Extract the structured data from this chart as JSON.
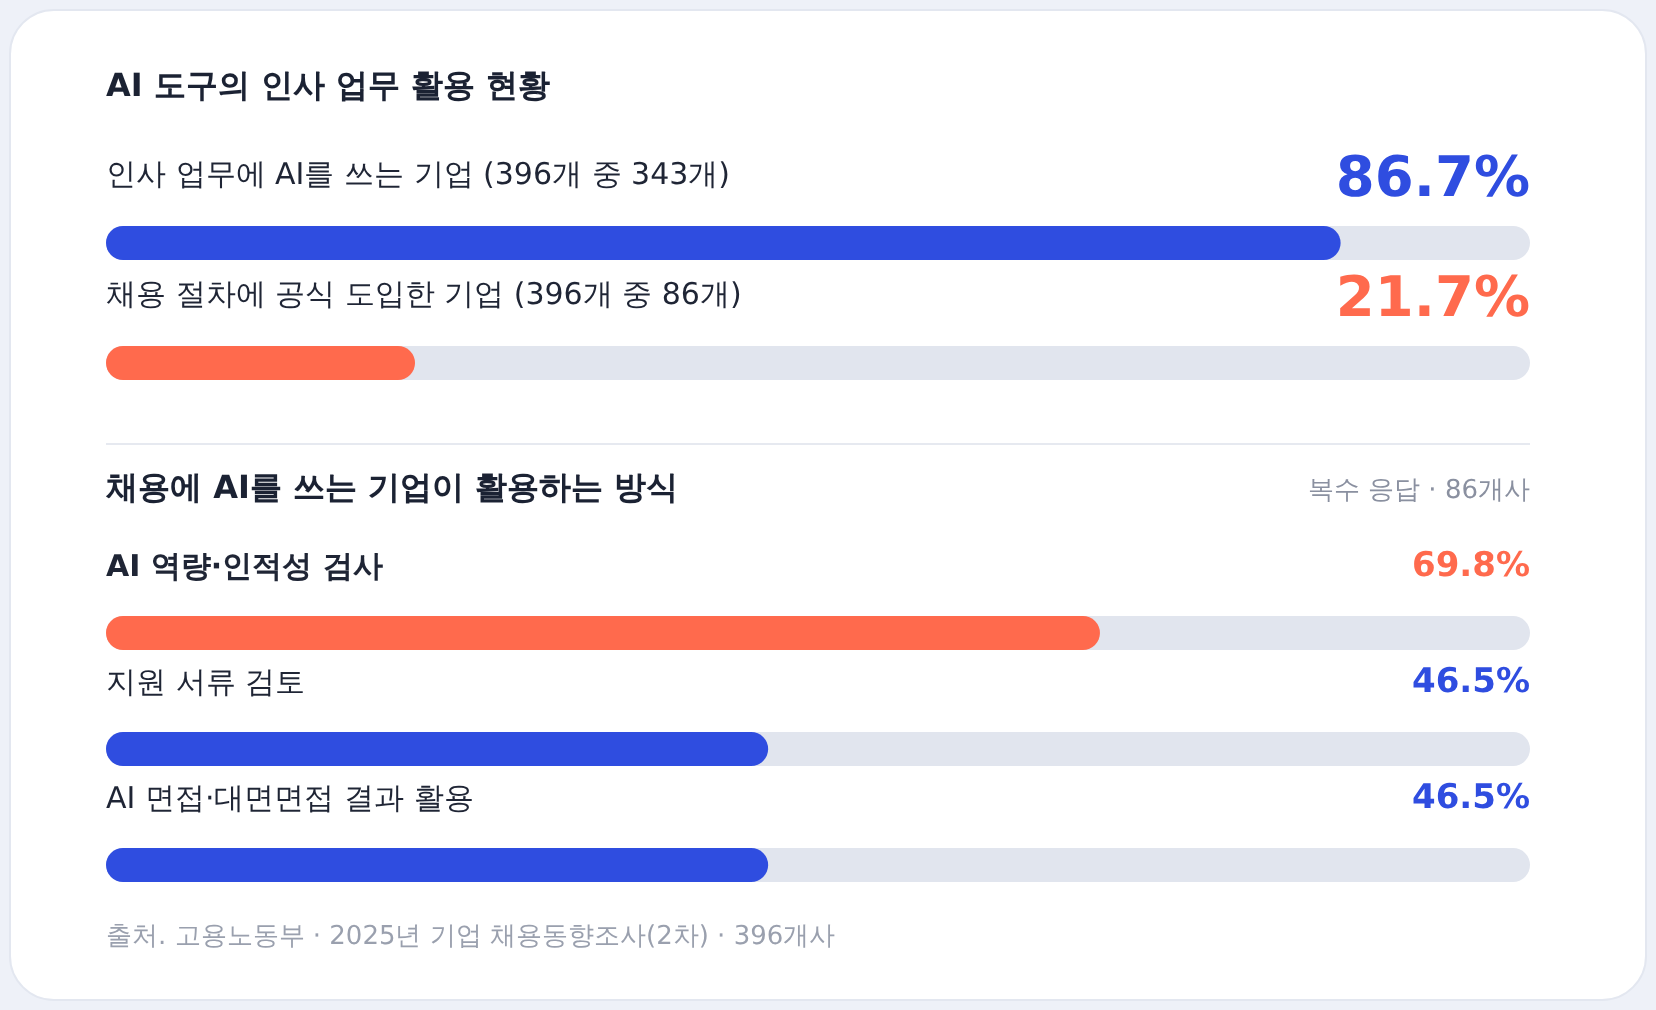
{
  "chart_data": [
    {
      "type": "bar",
      "orientation": "horizontal",
      "title": "AI 도구의 인사 업무 활용 현황",
      "categories": [
        "인사 업무에 AI를 쓰는 기업 (396개 중 343개)",
        "채용 절차에 공식 도입한 기업 (396개 중 86개)"
      ],
      "values": [
        86.7,
        21.7
      ],
      "colors": [
        "#2f4de0",
        "#ff6a4d"
      ],
      "value_labels": [
        "86.7%",
        "21.7%"
      ],
      "xlim": [
        0,
        100
      ]
    },
    {
      "type": "bar",
      "orientation": "horizontal",
      "title": "채용에 AI를 쓰는 기업이 활용하는 방식",
      "subtitle": "복수 응답 · 86개사",
      "categories": [
        "AI 역량·인적성 검사",
        "지원 서류 검토",
        "AI 면접·대면면접 결과 활용"
      ],
      "values": [
        69.8,
        46.5,
        46.5
      ],
      "colors": [
        "#ff6a4d",
        "#2f4de0",
        "#2f4de0"
      ],
      "value_labels": [
        "69.8%",
        "46.5%",
        "46.5%"
      ],
      "xlim": [
        0,
        100
      ],
      "annotations": [
        "출처. 고용노동부 · 2025년 기업 채용동향조사(2차) · 396개사"
      ]
    }
  ]
}
